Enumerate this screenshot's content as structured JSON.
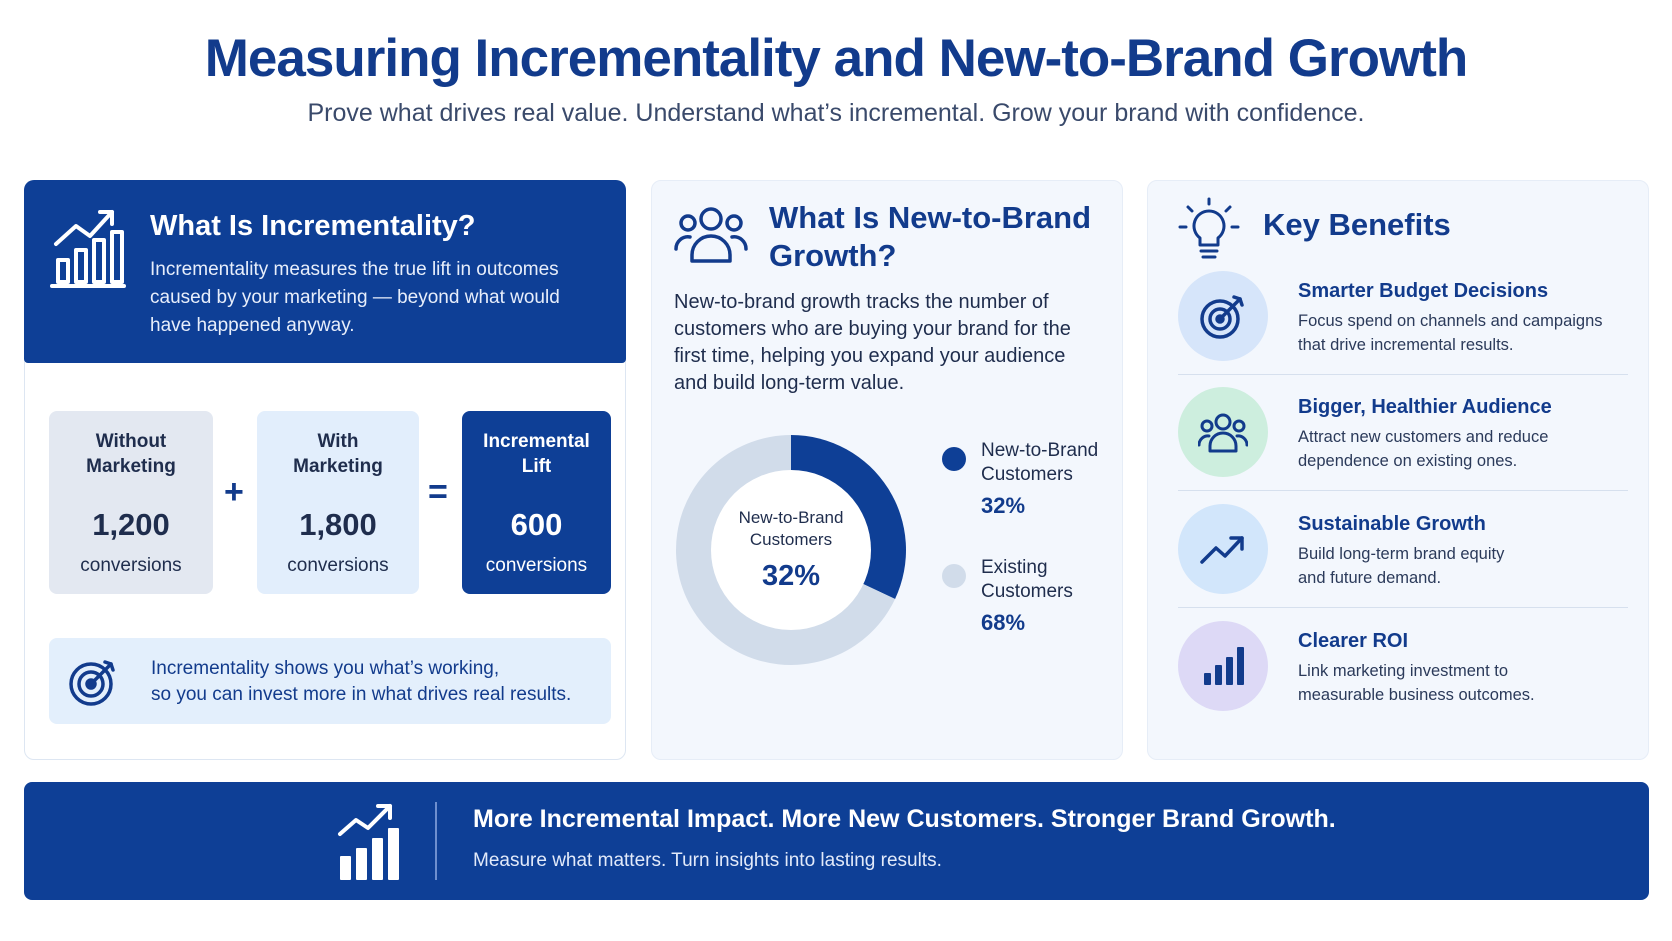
{
  "header": {
    "title": "Measuring Incrementality and New-to-Brand Growth",
    "subtitle": "Prove what drives real value. Understand what’s incremental. Grow your brand with confidence."
  },
  "incrementality": {
    "title": "What Is Incrementality?",
    "description": "Incrementality measures the true lift in outcomes caused by your marketing — beyond what would have happened anyway.",
    "without": {
      "label_line1": "Without",
      "label_line2": "Marketing",
      "value": "1,200",
      "unit": "conversions"
    },
    "with": {
      "label_line1": "With",
      "label_line2": "Marketing",
      "value": "1,800",
      "unit": "conversions"
    },
    "lift": {
      "label_line1": "Incremental",
      "label_line2": "Lift",
      "value": "600",
      "unit": "conversions"
    },
    "plus": "+",
    "equals": "=",
    "callout_line1": "Incrementality shows you what’s working,",
    "callout_line2": "so you can invest more in what drives real results."
  },
  "new_to_brand": {
    "title_line1": "What Is New-to-Brand",
    "title_line2": "Growth?",
    "description": "New-to-brand growth tracks the number of customers who are buying your brand for the first time, helping you expand your audience and build long-term value.",
    "donut_label_line1": "New-to-Brand",
    "donut_label_line2": "Customers",
    "donut_value": "32%",
    "legend": [
      {
        "label_line1": "New-to-Brand",
        "label_line2": "Customers",
        "value": "32%",
        "color": "#0e3f96"
      },
      {
        "label_line1": "Existing",
        "label_line2": "Customers",
        "value": "68%",
        "color": "#d1dcea"
      }
    ]
  },
  "chart_data": {
    "type": "pie",
    "categories": [
      "New-to-Brand Customers",
      "Existing Customers"
    ],
    "values": [
      32,
      68
    ]
  },
  "benefits": {
    "title": "Key Benefits",
    "items": [
      {
        "title": "Smarter Budget Decisions",
        "line1": "Focus spend on channels and campaigns",
        "line2": "that drive incremental results.",
        "icon": "target-icon",
        "color": "#d6e5fa"
      },
      {
        "title": "Bigger, Healthier Audience",
        "line1": "Attract new customers and reduce",
        "line2": "dependence on existing ones.",
        "icon": "audience-icon",
        "color": "#cdeede"
      },
      {
        "title": "Sustainable Growth",
        "line1": "Build long-term brand equity",
        "line2": "and future demand.",
        "icon": "trend-up-icon",
        "color": "#d2e6fb"
      },
      {
        "title": "Clearer ROI",
        "line1": "Link marketing investment to",
        "line2": "measurable business outcomes.",
        "icon": "bar-chart-icon",
        "color": "#ddd9f6"
      }
    ]
  },
  "footer": {
    "title": "More Incremental Impact. More New Customers. Stronger Brand Growth.",
    "subtitle": "Measure what matters. Turn insights into lasting results."
  }
}
